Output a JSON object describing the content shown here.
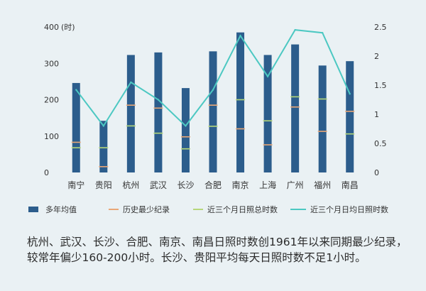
{
  "caption": "杭州、武汉、长沙、合肥、南京、南昌日照时数创1961年以来同期最少纪录，较常年偏少160-200小时。长沙、贵阳平均每天日照时数不足1小时。",
  "colors": {
    "bar": "#2c5d8c",
    "record_tick": "#e9a777",
    "recent_tick": "#b6d77a",
    "line": "#4cc8c2",
    "axis_text": "#333333",
    "grid": "#c8d8df"
  },
  "chart_data": {
    "type": "bar",
    "categories": [
      "南宁",
      "贵阳",
      "杭州",
      "武汉",
      "长沙",
      "合肥",
      "南京",
      "上海",
      "广州",
      "福州",
      "南昌"
    ],
    "y_left": {
      "ticks": [
        0,
        100,
        200,
        300,
        400
      ],
      "unit": "(时)",
      "ylim": [
        0,
        400
      ]
    },
    "y_right": {
      "ticks": [
        0,
        0.5,
        1,
        1.5,
        2,
        2.5
      ],
      "ylim": [
        0,
        2.5
      ]
    },
    "series": [
      {
        "name": "多年均值",
        "kind": "bar",
        "axis": "left",
        "values": [
          246,
          142,
          323,
          330,
          232,
          333,
          385,
          323,
          352,
          294,
          306
        ]
      },
      {
        "name": "历史最少纪录",
        "kind": "tick",
        "axis": "left",
        "values": [
          83,
          16,
          185,
          177,
          98,
          185,
          120,
          76,
          180,
          113,
          168
        ]
      },
      {
        "name": "近三个月日照总时数",
        "kind": "tick",
        "axis": "left",
        "values": [
          68,
          68,
          128,
          108,
          65,
          127,
          200,
          142,
          208,
          202,
          106
        ]
      },
      {
        "name": "近三个月日均日照时数",
        "kind": "line",
        "axis": "right",
        "values": [
          1.42,
          0.8,
          1.55,
          1.25,
          0.8,
          1.42,
          2.35,
          1.65,
          2.45,
          2.4,
          1.35
        ]
      }
    ]
  }
}
